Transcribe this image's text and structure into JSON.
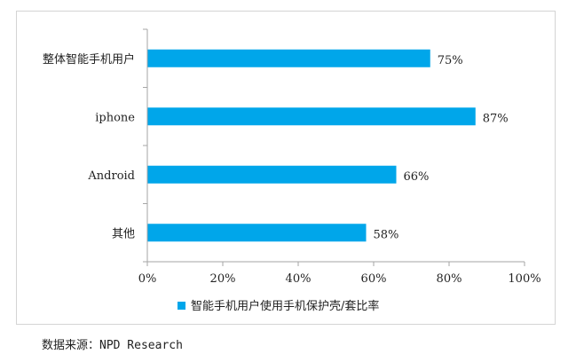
{
  "chart_data": {
    "type": "bar",
    "orientation": "horizontal",
    "categories": [
      "整体智能手机用户",
      "iphone",
      "Android",
      "其他"
    ],
    "series": [
      {
        "name": "智能手机用户使用手机保护壳/套比率",
        "values": [
          75,
          87,
          66,
          58
        ],
        "data_labels": [
          "75%",
          "87%",
          "66%",
          "58%"
        ]
      }
    ],
    "xlim": [
      0,
      100
    ],
    "x_ticks": [
      "0%",
      "20%",
      "40%",
      "60%",
      "80%",
      "100%"
    ],
    "grid": false,
    "legend_position": "bottom",
    "colors": {
      "bar": "#00A6EA",
      "axis": "#a6a6a6"
    }
  },
  "source": "数据来源：NPD Research"
}
